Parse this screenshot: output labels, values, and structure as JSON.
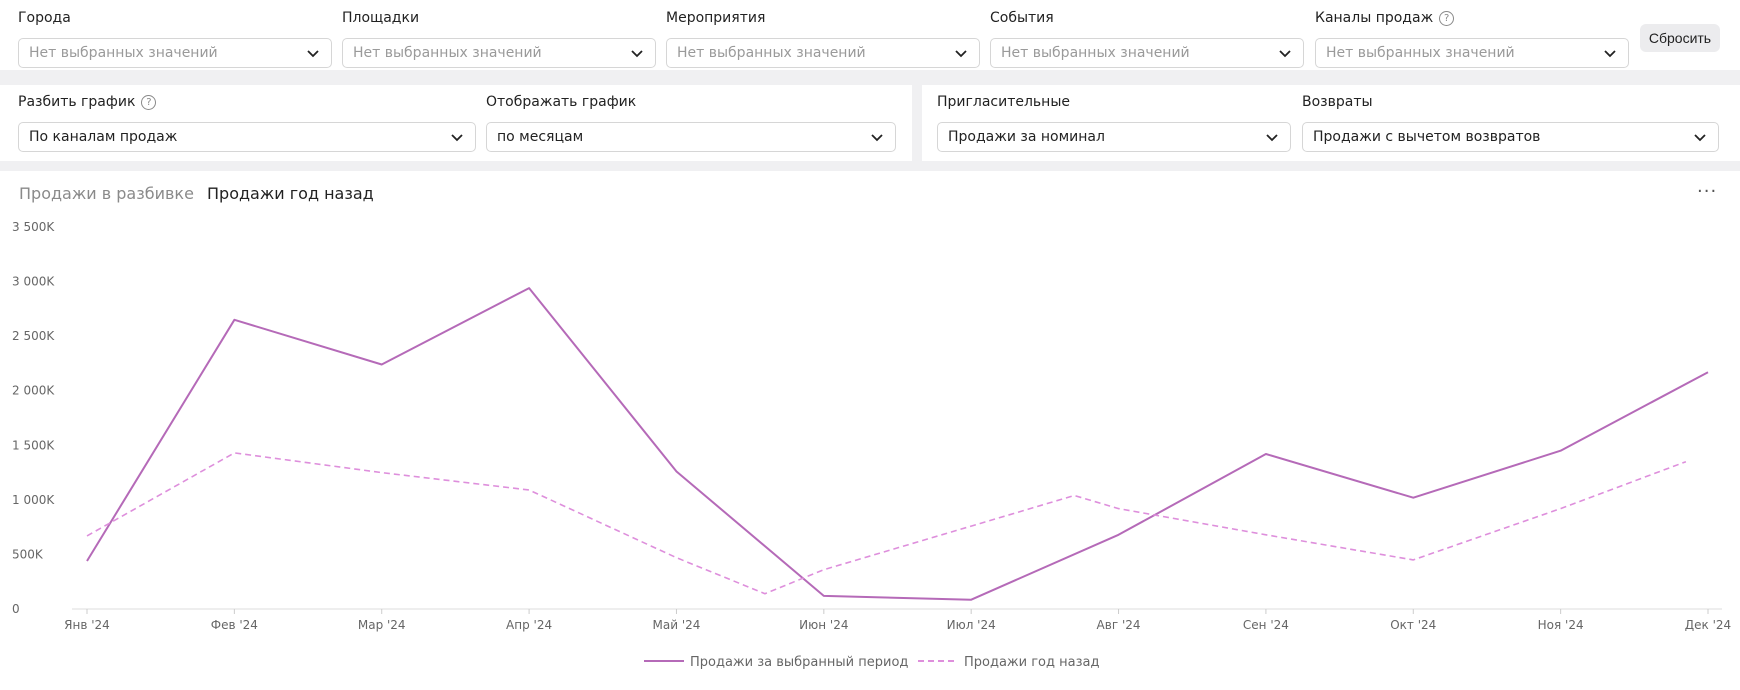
{
  "filters": [
    {
      "label": "Города",
      "placeholder": "Нет выбранных значений",
      "help": false
    },
    {
      "label": "Площадки",
      "placeholder": "Нет выбранных значений",
      "help": false
    },
    {
      "label": "Мероприятия",
      "placeholder": "Нет выбранных значений",
      "help": false
    },
    {
      "label": "События",
      "placeholder": "Нет выбранных значений",
      "help": false
    },
    {
      "label": "Каналы продаж",
      "placeholder": "Нет выбранных значений",
      "help": true
    }
  ],
  "reset_label": "Сбросить",
  "help_glyph": "?",
  "options": {
    "split": {
      "label": "Разбить график",
      "value": "По каналам продаж"
    },
    "display": {
      "label": "Отображать график",
      "value": "по месяцам"
    },
    "invites": {
      "label": "Пригласительные",
      "value": "Продажи за номинал"
    },
    "returns": {
      "label": "Возвраты",
      "value": "Продажи с вычетом возвратов"
    }
  },
  "tabs": [
    {
      "label": "Продажи в разбивке",
      "active": false
    },
    {
      "label": "Продажи год назад",
      "active": true
    }
  ],
  "more_label": "···",
  "colors": {
    "accent": "#b56ab8",
    "dashed": "#de8fdc",
    "axis": "#dddddd"
  },
  "chart_data": {
    "type": "line",
    "categories": [
      "Янв '24",
      "Фев '24",
      "Мар '24",
      "Апр '24",
      "Май '24",
      "Июн '24",
      "Июл '24",
      "Авг '24",
      "Сен '24",
      "Окт '24",
      "Ноя '24",
      "Дек '24"
    ],
    "y_ticks": [
      "0",
      "500K",
      "1 000K",
      "1 500K",
      "2 000K",
      "2 500K",
      "3 000K",
      "3 500K"
    ],
    "ylim": [
      0,
      3500000
    ],
    "series": [
      {
        "name": "Продажи за выбранный период",
        "style": "solid",
        "points": [
          [
            0,
            440000
          ],
          [
            1,
            2650000
          ],
          [
            2,
            2240000
          ],
          [
            3,
            2940000
          ],
          [
            4,
            1260000
          ],
          [
            5,
            120000
          ],
          [
            6,
            85000
          ],
          [
            7,
            680000
          ],
          [
            8,
            1420000
          ],
          [
            9,
            1020000
          ],
          [
            10,
            1450000
          ],
          [
            11,
            2170000
          ]
        ]
      },
      {
        "name": "Продажи год назад",
        "style": "dashed",
        "points": [
          [
            0,
            670000
          ],
          [
            1,
            1430000
          ],
          [
            2,
            1250000
          ],
          [
            3,
            1090000
          ],
          [
            4,
            470000
          ],
          [
            4.6,
            140000
          ],
          [
            5,
            360000
          ],
          [
            6,
            760000
          ],
          [
            6.7,
            1040000
          ],
          [
            7,
            920000
          ],
          [
            8,
            680000
          ],
          [
            9,
            450000
          ],
          [
            10,
            920000
          ],
          [
            10.85,
            1350000
          ]
        ]
      }
    ]
  }
}
